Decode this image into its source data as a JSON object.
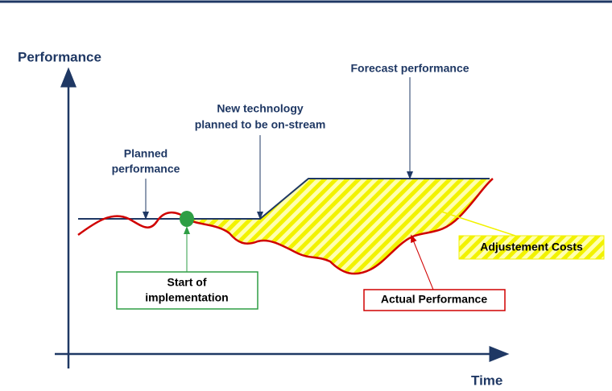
{
  "axes": {
    "y_label": "Performance",
    "x_label": "Time"
  },
  "callouts": {
    "forecast": [
      "Forecast performance"
    ],
    "new_technology": [
      "New technology",
      "planned to be on-stream"
    ],
    "planned": [
      "Planned",
      "performance"
    ]
  },
  "boxes": {
    "start": [
      "Start of",
      "implementation"
    ],
    "adjustment": [
      "Adjustement Costs"
    ],
    "actual": [
      "Actual Performance"
    ]
  }
}
